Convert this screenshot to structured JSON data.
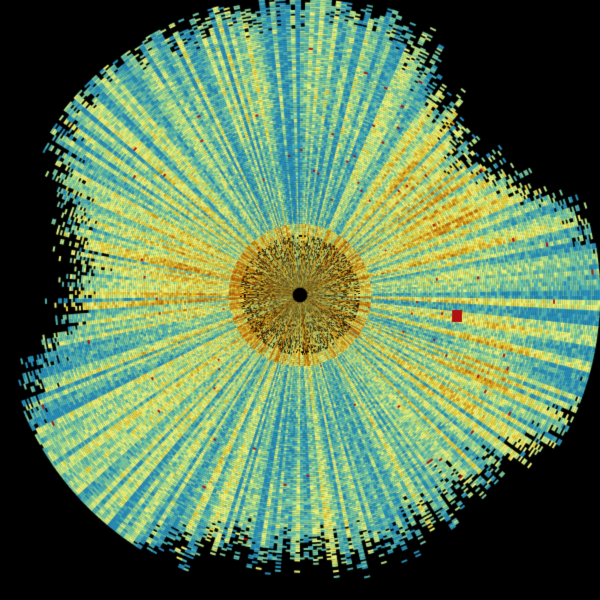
{
  "background_color": "#000000",
  "palette": [
    "#2a8fb8",
    "#4fb0b0",
    "#7cc8a0",
    "#b8e48a",
    "#eef27a",
    "#e8d040",
    "#d8a020",
    "#c07010",
    "#b01010"
  ],
  "center_color": "#000000"
}
